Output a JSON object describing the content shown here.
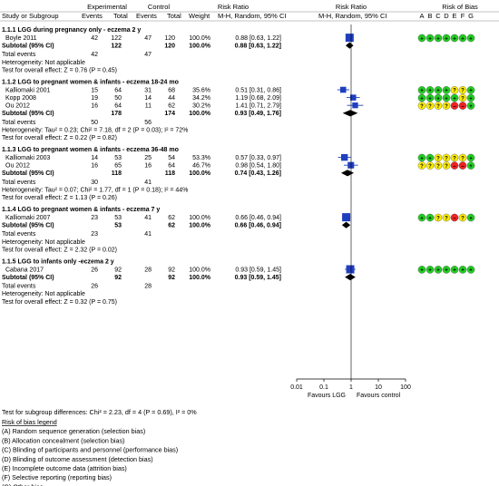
{
  "header": {
    "experimental": "Experimental",
    "control": "Control",
    "risk_ratio": "Risk Ratio",
    "risk_ratio_2": "Risk Ratio",
    "risk_of_bias": "Risk of Bias",
    "study_or_subgroup": "Study or Subgroup",
    "events_e": "Events",
    "total_e": "Total",
    "events_c": "Events",
    "total_c": "Total",
    "weight": "Weight",
    "method": "M-H, Random, 95% CI",
    "method_2": "M-H, Random, 95% CI",
    "bias_letters": [
      "A",
      "B",
      "C",
      "D",
      "E",
      "F",
      "G"
    ]
  },
  "colors": {
    "low": "#22cc22",
    "unclear": "#ffee00",
    "high": "#ee2222",
    "study_square": "#1f3fbf",
    "diamond": "#000000"
  },
  "axis": {
    "ticks": [
      "0.01",
      "0.1",
      "1",
      "10",
      "100"
    ],
    "tick_values": [
      0.01,
      0.1,
      1,
      10,
      100
    ],
    "favours_left": "Favours LGG",
    "favours_right": "Favours control"
  },
  "chart_data": {
    "type": "forest",
    "scale": "log",
    "xlim": [
      0.01,
      100
    ],
    "null_value": 1,
    "subgroups": [
      {
        "title": "1.1.1 LGG during pregnancy only - eczema 2 y",
        "studies": [
          {
            "name": "Boyle 2011",
            "e_events": "42",
            "e_total": "122",
            "c_events": "47",
            "c_total": "120",
            "weight": "100.0%",
            "ci_text": "0.88 [0.63, 1.22]",
            "rr": 0.88,
            "lo": 0.63,
            "hi": 1.22,
            "bias": [
              "+",
              "+",
              "+",
              "+",
              "+",
              "+",
              "+"
            ]
          }
        ],
        "subtotal": {
          "label": "Subtotal (95% CI)",
          "e_total": "122",
          "c_total": "120",
          "weight": "100.0%",
          "ci_text": "0.88 [0.63, 1.22]",
          "rr": 0.88,
          "lo": 0.63,
          "hi": 1.22
        },
        "total_events": {
          "label": "Total events",
          "e": "42",
          "c": "47"
        },
        "heterogeneity": "Heterogeneity: Not applicable",
        "overall": "Test for overall effect: Z = 0.76 (P = 0.45)"
      },
      {
        "title": "1.1.2 LGG to pregnant women & infants - eczema 18-24 mo",
        "studies": [
          {
            "name": "Kalliomaki 2001",
            "e_events": "15",
            "e_total": "64",
            "c_events": "31",
            "c_total": "68",
            "weight": "35.6%",
            "ci_text": "0.51 [0.31, 0.86]",
            "rr": 0.51,
            "lo": 0.31,
            "hi": 0.86,
            "bias": [
              "+",
              "+",
              "+",
              "+",
              "?",
              "?",
              "+"
            ]
          },
          {
            "name": "Kopp 2008",
            "e_events": "19",
            "e_total": "50",
            "c_events": "14",
            "c_total": "44",
            "weight": "34.2%",
            "ci_text": "1.19 [0.68, 2.09]",
            "rr": 1.19,
            "lo": 0.68,
            "hi": 2.09,
            "bias": [
              "+",
              "+",
              "+",
              "+",
              "+",
              "?",
              "+"
            ]
          },
          {
            "name": "Ou 2012",
            "e_events": "16",
            "e_total": "64",
            "c_events": "11",
            "c_total": "62",
            "weight": "30.2%",
            "ci_text": "1.41 [0.71, 2.79]",
            "rr": 1.41,
            "lo": 0.71,
            "hi": 2.79,
            "bias": [
              "?",
              "?",
              "?",
              "?",
              "-",
              "-",
              "+"
            ]
          }
        ],
        "subtotal": {
          "label": "Subtotal (95% CI)",
          "e_total": "178",
          "c_total": "174",
          "weight": "100.0%",
          "ci_text": "0.93 [0.49, 1.76]",
          "rr": 0.93,
          "lo": 0.49,
          "hi": 1.76
        },
        "total_events": {
          "label": "Total events",
          "e": "50",
          "c": "56"
        },
        "heterogeneity": "Heterogeneity: Tau² = 0.23; Chi² = 7.18, df = 2 (P = 0.03); I² = 72%",
        "overall": "Test for overall effect: Z = 0.22 (P = 0.82)"
      },
      {
        "title": "1.1.3 LGG to pregnant women & infants - eczema 36-48 mo",
        "studies": [
          {
            "name": "Kalliomaki 2003",
            "e_events": "14",
            "e_total": "53",
            "c_events": "25",
            "c_total": "54",
            "weight": "53.3%",
            "ci_text": "0.57 [0.33, 0.97]",
            "rr": 0.57,
            "lo": 0.33,
            "hi": 0.97,
            "bias": [
              "+",
              "+",
              "?",
              "?",
              "?",
              "?",
              "+"
            ]
          },
          {
            "name": "Ou 2012",
            "e_events": "16",
            "e_total": "65",
            "c_events": "16",
            "c_total": "64",
            "weight": "46.7%",
            "ci_text": "0.98 [0.54, 1.80]",
            "rr": 0.98,
            "lo": 0.54,
            "hi": 1.8,
            "bias": [
              "?",
              "?",
              "?",
              "?",
              "-",
              "-",
              "+"
            ]
          }
        ],
        "subtotal": {
          "label": "Subtotal (95% CI)",
          "e_total": "118",
          "c_total": "118",
          "weight": "100.0%",
          "ci_text": "0.74 [0.43, 1.26]",
          "rr": 0.74,
          "lo": 0.43,
          "hi": 1.26
        },
        "total_events": {
          "label": "Total events",
          "e": "30",
          "c": "41"
        },
        "heterogeneity": "Heterogeneity: Tau² = 0.07; Chi² = 1.77, df = 1 (P = 0.18); I² = 44%",
        "overall": "Test for overall effect: Z = 1.13 (P = 0.26)"
      },
      {
        "title": "1.1.4 LGG to pregnant women & infants - eczema 7 y",
        "studies": [
          {
            "name": "Kalliomaki 2007",
            "e_events": "23",
            "e_total": "53",
            "c_events": "41",
            "c_total": "62",
            "weight": "100.0%",
            "ci_text": "0.66 [0.46, 0.94]",
            "rr": 0.66,
            "lo": 0.46,
            "hi": 0.94,
            "bias": [
              "+",
              "+",
              "?",
              "?",
              "-",
              "?",
              "+"
            ]
          }
        ],
        "subtotal": {
          "label": "Subtotal (95% CI)",
          "e_total": "53",
          "c_total": "62",
          "weight": "100.0%",
          "ci_text": "0.66 [0.46, 0.94]",
          "rr": 0.66,
          "lo": 0.46,
          "hi": 0.94
        },
        "total_events": {
          "label": "Total events",
          "e": "23",
          "c": "41"
        },
        "heterogeneity": "Heterogeneity: Not applicable",
        "overall": "Test for overall effect: Z = 2.32 (P = 0.02)"
      },
      {
        "title": "1.1.5 LGG to infants only -eczema 2 y",
        "studies": [
          {
            "name": "Cabana 2017",
            "e_events": "26",
            "e_total": "92",
            "c_events": "28",
            "c_total": "92",
            "weight": "100.0%",
            "ci_text": "0.93 [0.59, 1.45]",
            "rr": 0.93,
            "lo": 0.59,
            "hi": 1.45,
            "bias": [
              "+",
              "+",
              "+",
              "+",
              "+",
              "+",
              "+"
            ]
          }
        ],
        "subtotal": {
          "label": "Subtotal (95% CI)",
          "e_total": "92",
          "c_total": "92",
          "weight": "100.0%",
          "ci_text": "0.93 [0.59, 1.45]",
          "rr": 0.93,
          "lo": 0.59,
          "hi": 1.45
        },
        "total_events": {
          "label": "Total events",
          "e": "26",
          "c": "28"
        },
        "heterogeneity": "Heterogeneity: Not applicable",
        "overall": "Test for overall effect: Z = 0.32 (P = 0.75)"
      }
    ]
  },
  "footer": {
    "subgroup_test": "Test for subgroup differences: Chi² = 2.23, df = 4 (P = 0.69), I² = 0%",
    "legend_title": "Risk of bias legend",
    "legend_items": [
      "(A) Random sequence generation (selection bias)",
      "(B) Allocation concealment (selection bias)",
      "(C) Blinding of participants and personnel (performance bias)",
      "(D) Blinding of outcome assessment (detection bias)",
      "(E) Incomplete outcome data (attrition bias)",
      "(F) Selective reporting (reporting bias)",
      "(G) Other bias"
    ]
  }
}
